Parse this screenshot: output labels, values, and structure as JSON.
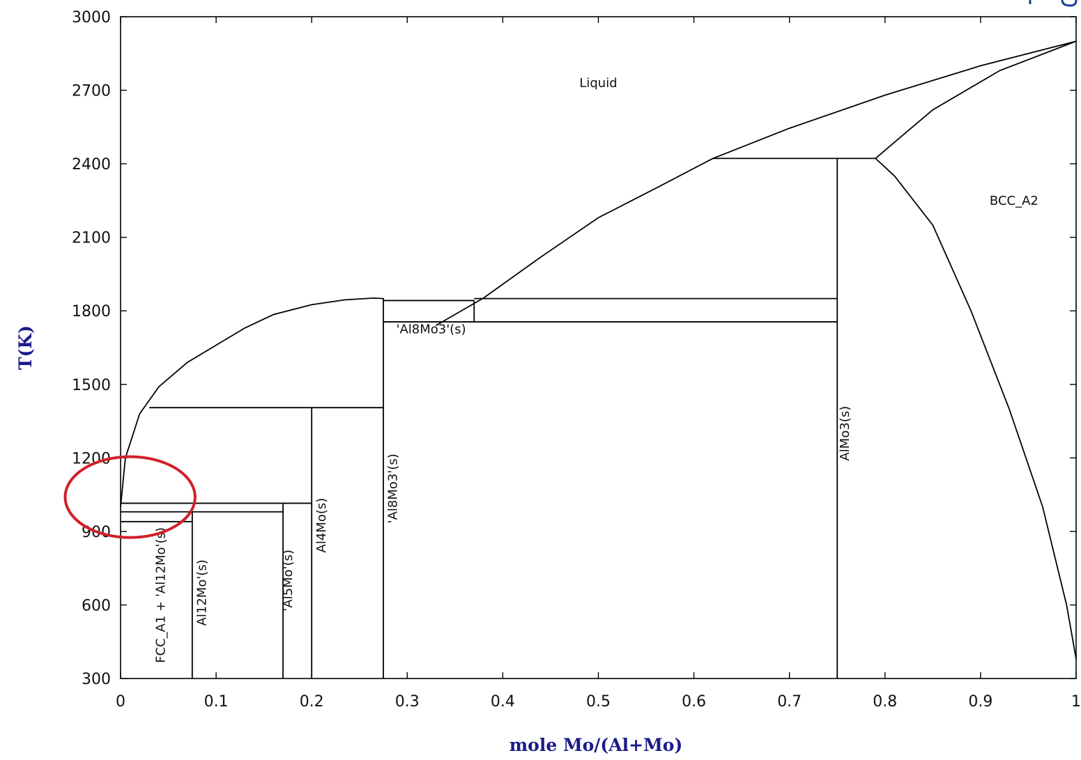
{
  "chart_data": {
    "type": "phase-diagram",
    "xlabel": "mole Mo/(Al+Mo)",
    "ylabel": "T(K)",
    "xlim": [
      0,
      1
    ],
    "ylim": [
      300,
      3000
    ],
    "x_ticks": [
      0,
      0.1,
      0.2,
      0.3,
      0.4,
      0.5,
      0.6,
      0.7,
      0.8,
      0.9,
      1
    ],
    "x_tick_labels": [
      "0",
      "0.1",
      "0.2",
      "0.3",
      "0.4",
      "0.5",
      "0.6",
      "0.7",
      "0.8",
      "0.9",
      "1"
    ],
    "y_ticks": [
      300,
      600,
      900,
      1200,
      1500,
      1800,
      2100,
      2400,
      2700,
      3000
    ],
    "y_tick_labels": [
      "300",
      "600",
      "900",
      "1200",
      "1500",
      "1800",
      "2100",
      "2400",
      "2700",
      "3000"
    ],
    "region_labels": [
      {
        "text": "Liquid",
        "x": 0.5,
        "y": 2730,
        "rotate": 0
      },
      {
        "text": "BCC_A2",
        "x": 0.935,
        "y": 2250,
        "rotate": 0
      },
      {
        "text": "'Al8Mo3'(s)",
        "x": 0.325,
        "y": 1725,
        "rotate": 0
      },
      {
        "text": "FCC_A1 + 'Al12Mo'(s)",
        "x": 0.042,
        "y": 640,
        "rotate": -90
      },
      {
        "text": "Al12Mo'(s)",
        "x": 0.085,
        "y": 650,
        "rotate": -90
      },
      {
        "text": "'Al5Mo'(s)",
        "x": 0.175,
        "y": 700,
        "rotate": -90
      },
      {
        "text": "Al4Mo(s)",
        "x": 0.21,
        "y": 925,
        "rotate": -90
      },
      {
        "text": "'Al8Mo3'(s)",
        "x": 0.285,
        "y": 1075,
        "rotate": -90
      },
      {
        "text": "AlMo3(s)",
        "x": 0.758,
        "y": 1300,
        "rotate": -90
      }
    ],
    "liquidus_al_side": [
      [
        0,
        1000
      ],
      [
        0.005,
        1200
      ],
      [
        0.02,
        1380
      ],
      [
        0.04,
        1490
      ],
      [
        0.07,
        1590
      ],
      [
        0.1,
        1660
      ],
      [
        0.13,
        1730
      ],
      [
        0.16,
        1785
      ],
      [
        0.2,
        1825
      ],
      [
        0.235,
        1845
      ],
      [
        0.265,
        1852
      ],
      [
        0.275,
        1850
      ]
    ],
    "liquidus_mo_side": [
      [
        0.38,
        1853
      ],
      [
        0.44,
        2020
      ],
      [
        0.5,
        2180
      ],
      [
        0.56,
        2300
      ],
      [
        0.62,
        2422
      ],
      [
        0.7,
        2545
      ],
      [
        0.8,
        2680
      ],
      [
        0.9,
        2800
      ],
      [
        1,
        2900
      ]
    ],
    "solidus_mo_side": [
      [
        0.79,
        2422
      ],
      [
        0.85,
        2620
      ],
      [
        0.92,
        2780
      ],
      [
        1,
        2900
      ]
    ],
    "bcc_solvus": [
      [
        0.79,
        2422
      ],
      [
        0.81,
        2350
      ],
      [
        0.85,
        2150
      ],
      [
        0.89,
        1800
      ],
      [
        0.93,
        1400
      ],
      [
        0.965,
        1000
      ],
      [
        0.99,
        600
      ],
      [
        1,
        380
      ]
    ],
    "invariant_lines": [
      {
        "x": [
          0.03,
          0.275
        ],
        "y": 1405
      },
      {
        "x": [
          0,
          0.2
        ],
        "y": 1015
      },
      {
        "x": [
          0,
          0.17
        ],
        "y": 980
      },
      {
        "x": [
          0,
          0.075
        ],
        "y": 940
      },
      {
        "x": [
          0.275,
          0.37
        ],
        "y": 1842
      },
      {
        "x": [
          0.275,
          0.37
        ],
        "y": 1755
      },
      {
        "x": [
          0.37,
          0.75
        ],
        "y": 1850
      },
      {
        "x": [
          0.37,
          0.75
        ],
        "y": 1755
      },
      {
        "x": [
          0.62,
          0.79
        ],
        "y": 2422
      }
    ],
    "compound_lines": [
      {
        "x": 0.075,
        "y": [
          300,
          980
        ]
      },
      {
        "x": 0.17,
        "y": [
          300,
          1015
        ]
      },
      {
        "x": 0.2,
        "y": [
          300,
          1405
        ]
      },
      {
        "x": 0.275,
        "y": [
          300,
          1852
        ]
      },
      {
        "x": 0.37,
        "y": [
          1755,
          1842
        ]
      },
      {
        "x": 0.75,
        "y": [
          300,
          2422
        ]
      }
    ],
    "extra_segments": [
      {
        "points": [
          [
            0.33,
            1740
          ],
          [
            0.38,
            1853
          ]
        ]
      }
    ],
    "highlight": {
      "shape": "ellipse",
      "cx": 0.01,
      "cy": 1040,
      "rx": 0.068,
      "ry": 165,
      "color": "#d0222a"
    },
    "grid": false,
    "corner_mark_color": "#1b3d9a"
  }
}
